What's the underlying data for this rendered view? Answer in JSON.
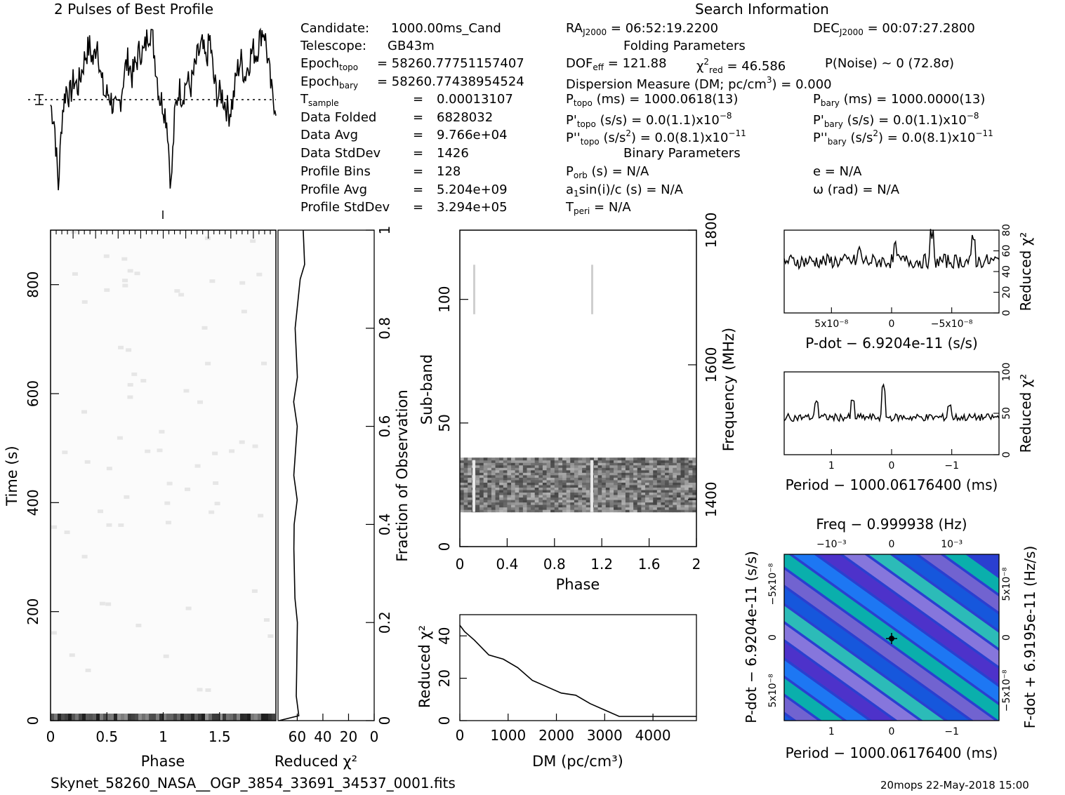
{
  "header": {
    "profile_title": "2 Pulses of Best Profile",
    "search_title": "Search Information"
  },
  "info_left": [
    {
      "label": "Candidate:",
      "value": "1000.00ms_Cand"
    },
    {
      "label": "Telescope:",
      "value": "GB43m"
    },
    {
      "label": "Epoch",
      "sub": "topo",
      "value": "= 58260.77751157407"
    },
    {
      "label": "Epoch",
      "sub": "bary",
      "value": "= 58260.77438954524"
    },
    {
      "label": "T",
      "sub": "sample",
      "eq": "=",
      "value": "0.00013107"
    },
    {
      "label": "Data Folded",
      "eq": "=",
      "value": "6828032"
    },
    {
      "label": "Data Avg",
      "eq": "=",
      "value": "9.766e+04"
    },
    {
      "label": "Data StdDev",
      "eq": "=",
      "value": "1426"
    },
    {
      "label": "Profile Bins",
      "eq": "=",
      "value": "128"
    },
    {
      "label": "Profile Avg",
      "eq": "=",
      "value": "5.204e+09"
    },
    {
      "label": "Profile StdDev",
      "eq": "=",
      "value": "3.294e+05"
    }
  ],
  "info_right": {
    "ra": "= 06:52:19.2200",
    "dec": "= 00:07:27.2800",
    "folding_title": "Folding Parameters",
    "dof": "= 121.88",
    "chi2": "= 46.586",
    "pnoise": "P(Noise) ~ 0    (72.8σ)",
    "dm_line": "Dispersion Measure (DM; pc/cm",
    "dm_value": ") = 0.000",
    "ptopo": "(ms) =  1000.0618(13)",
    "pbary": "(ms) =  1000.0000(13)",
    "pdtopo": "(s/s) = 0.0(1.1)x10",
    "pdbary": "(s/s) = 0.0(1.1)x10",
    "pddtopo": ") = 0.0(8.1)x10",
    "pddbary": ") = 0.0(8.1)x10",
    "binary_title": "Binary Parameters",
    "porb": "(s) = N/A",
    "asini": "sin(i)/c (s) = N/A",
    "tperi": "= N/A",
    "e": "e = N/A",
    "omega": "ω (rad) = N/A"
  },
  "footer": {
    "filename": "Skynet_58260_NASA__OGP_3854_33691_34537_0001.fits",
    "stamp": "20mops 22-May-2018 15:00"
  },
  "chart_data": [
    {
      "type": "line",
      "title": "2 Pulses of Best Profile",
      "xlabel": "",
      "ylabel": "",
      "x_range": [
        0,
        2
      ],
      "note": "two identical cycles of the folded pulse profile",
      "profile_shape": [
        0.55,
        0.45,
        0.05,
        0.5,
        0.65,
        0.6,
        0.7,
        0.65,
        0.75,
        0.85,
        0.9,
        0.8,
        0.95,
        0.7,
        0.6,
        0.62,
        0.55,
        0.5,
        0.58,
        0.75,
        0.82,
        0.72,
        0.8,
        0.88,
        0.85,
        0.98,
        1.0,
        0.8,
        0.6,
        0.55
      ]
    },
    {
      "type": "heatmap",
      "xlabel": "Phase",
      "ylabel": "Time (s)",
      "xlim": [
        0,
        2
      ],
      "ylim": [
        0,
        900
      ],
      "x_ticks": [
        "0",
        "0.5",
        "1",
        "1.5"
      ],
      "y_ticks": [
        "0",
        "200",
        "400",
        "600",
        "800"
      ]
    },
    {
      "type": "line",
      "xlabel": "Reduced χ²",
      "ylabel": "Fraction of Observation",
      "x_reversed": true,
      "x_ticks": [
        "60",
        "40",
        "20",
        "0"
      ],
      "y_ticks": [
        "0",
        "0.2",
        "0.4",
        "0.6",
        "0.8",
        "1"
      ],
      "points": [
        [
          75,
          0
        ],
        [
          58,
          0.01
        ],
        [
          60,
          0.05
        ],
        [
          60,
          0.1
        ],
        [
          60,
          0.2
        ],
        [
          62,
          0.25
        ],
        [
          62,
          0.35
        ],
        [
          62,
          0.4
        ],
        [
          60,
          0.45
        ],
        [
          62,
          0.5
        ],
        [
          60,
          0.6
        ],
        [
          62,
          0.65
        ],
        [
          60,
          0.7
        ],
        [
          62,
          0.8
        ],
        [
          58,
          0.9
        ],
        [
          55,
          0.93
        ],
        [
          55,
          1.0
        ]
      ]
    },
    {
      "type": "heatmap",
      "xlabel": "Phase",
      "ylabel": "Sub-band",
      "y2label": "Frequency (MHz)",
      "xlim": [
        0,
        2
      ],
      "ylim": [
        0,
        128
      ],
      "x_ticks": [
        "0",
        "0.4",
        "0.8",
        "1.2",
        "1.6",
        "2"
      ],
      "y_ticks": [
        "0",
        "50",
        "100"
      ],
      "y2_ticks": [
        "1400",
        "1600",
        "1800"
      ]
    },
    {
      "type": "line",
      "xlabel": "DM (pc/cm³)",
      "ylabel": "Reduced χ²",
      "xlim": [
        0,
        4900
      ],
      "ylim": [
        0,
        50
      ],
      "x_ticks": [
        "0",
        "1000",
        "2000",
        "3000",
        "4000"
      ],
      "y_ticks": [
        "0",
        "20",
        "40"
      ],
      "points": [
        [
          0,
          45
        ],
        [
          100,
          42
        ],
        [
          300,
          38
        ],
        [
          600,
          31
        ],
        [
          900,
          29
        ],
        [
          1200,
          25
        ],
        [
          1500,
          19
        ],
        [
          1800,
          16
        ],
        [
          2100,
          13
        ],
        [
          2400,
          12
        ],
        [
          2700,
          8
        ],
        [
          3000,
          5
        ],
        [
          3300,
          2
        ],
        [
          3600,
          2
        ],
        [
          4000,
          2
        ],
        [
          4900,
          2
        ]
      ]
    },
    {
      "type": "line",
      "xlabel": "P-dot − 6.9204e-11 (s/s)",
      "ylabel": "Reduced χ²",
      "ylim": [
        0,
        80
      ],
      "x_ticks": [
        "5x10⁻⁸",
        "0",
        "−5x10⁻⁸"
      ],
      "y_ticks": [
        "0",
        "20",
        "40",
        "60",
        "80"
      ]
    },
    {
      "type": "line",
      "xlabel": "Period − 1000.06176400 (ms)",
      "ylabel": "Reduced χ²",
      "ylim": [
        0,
        100
      ],
      "x_ticks": [
        "1",
        "0",
        "−1"
      ],
      "y_ticks": [
        "0",
        "50",
        "100"
      ]
    },
    {
      "type": "heatmap",
      "xlabel": "Period − 1000.06176400 (ms)",
      "ylabel": "P-dot − 6.9204e-11 (s/s)",
      "x2label": "Freq − 0.999938 (Hz)",
      "y2label": "F-dot + 6.9195e-11 (Hz/s)",
      "x_ticks": [
        "1",
        "0",
        "−1"
      ],
      "x2_ticks": [
        "−10⁻³",
        "0",
        "10⁻³"
      ],
      "y_ticks": [
        "5x10⁻⁸",
        "0",
        "−5x10⁻⁸"
      ],
      "y2_ticks": [
        "−5x10⁻⁸",
        "0",
        "5x10⁻⁸"
      ]
    }
  ]
}
